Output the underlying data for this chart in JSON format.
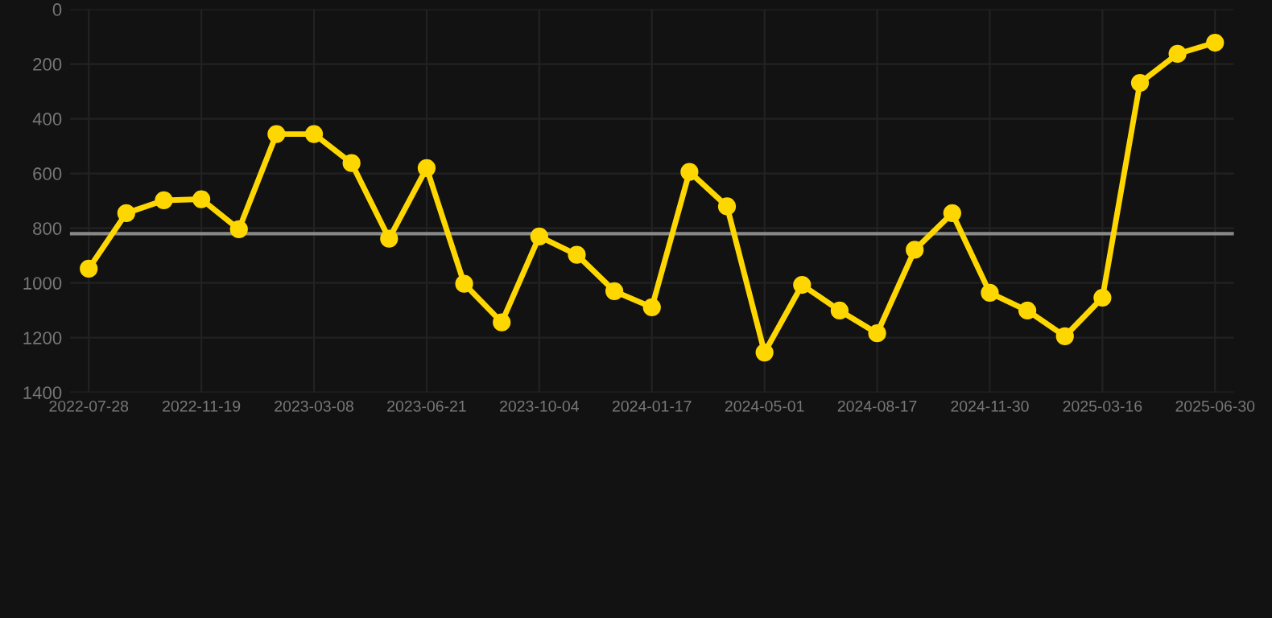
{
  "chart_data": {
    "type": "line",
    "categories": [
      "2022-07-28",
      null,
      null,
      "2022-11-19",
      null,
      null,
      "2023-03-08",
      null,
      null,
      "2023-06-21",
      null,
      null,
      "2023-10-04",
      null,
      null,
      "2024-01-17",
      null,
      null,
      "2024-05-01",
      null,
      null,
      "2024-08-17",
      null,
      null,
      "2024-11-30",
      null,
      null,
      "2025-03-16",
      null,
      null,
      "2025-06-30"
    ],
    "series": [
      {
        "color": "#ffd700",
        "values": [
          948,
          745,
          698,
          694,
          804,
          456,
          456,
          562,
          838,
          580,
          1003,
          1144,
          830,
          897,
          1030,
          1089,
          594,
          720,
          1254,
          1007,
          1101,
          1184,
          879,
          745,
          1036,
          1101,
          1195,
          1054,
          269,
          163,
          122
        ]
      }
    ],
    "ylim": [
      1400,
      0
    ],
    "yticks": [
      0,
      200,
      400,
      600,
      800,
      1000,
      1200,
      1400
    ],
    "ref_lines": [
      {
        "axis": "y",
        "value": 820,
        "color": "#888888"
      }
    ],
    "grid": true,
    "marker": "circle",
    "line_style": "solid"
  }
}
